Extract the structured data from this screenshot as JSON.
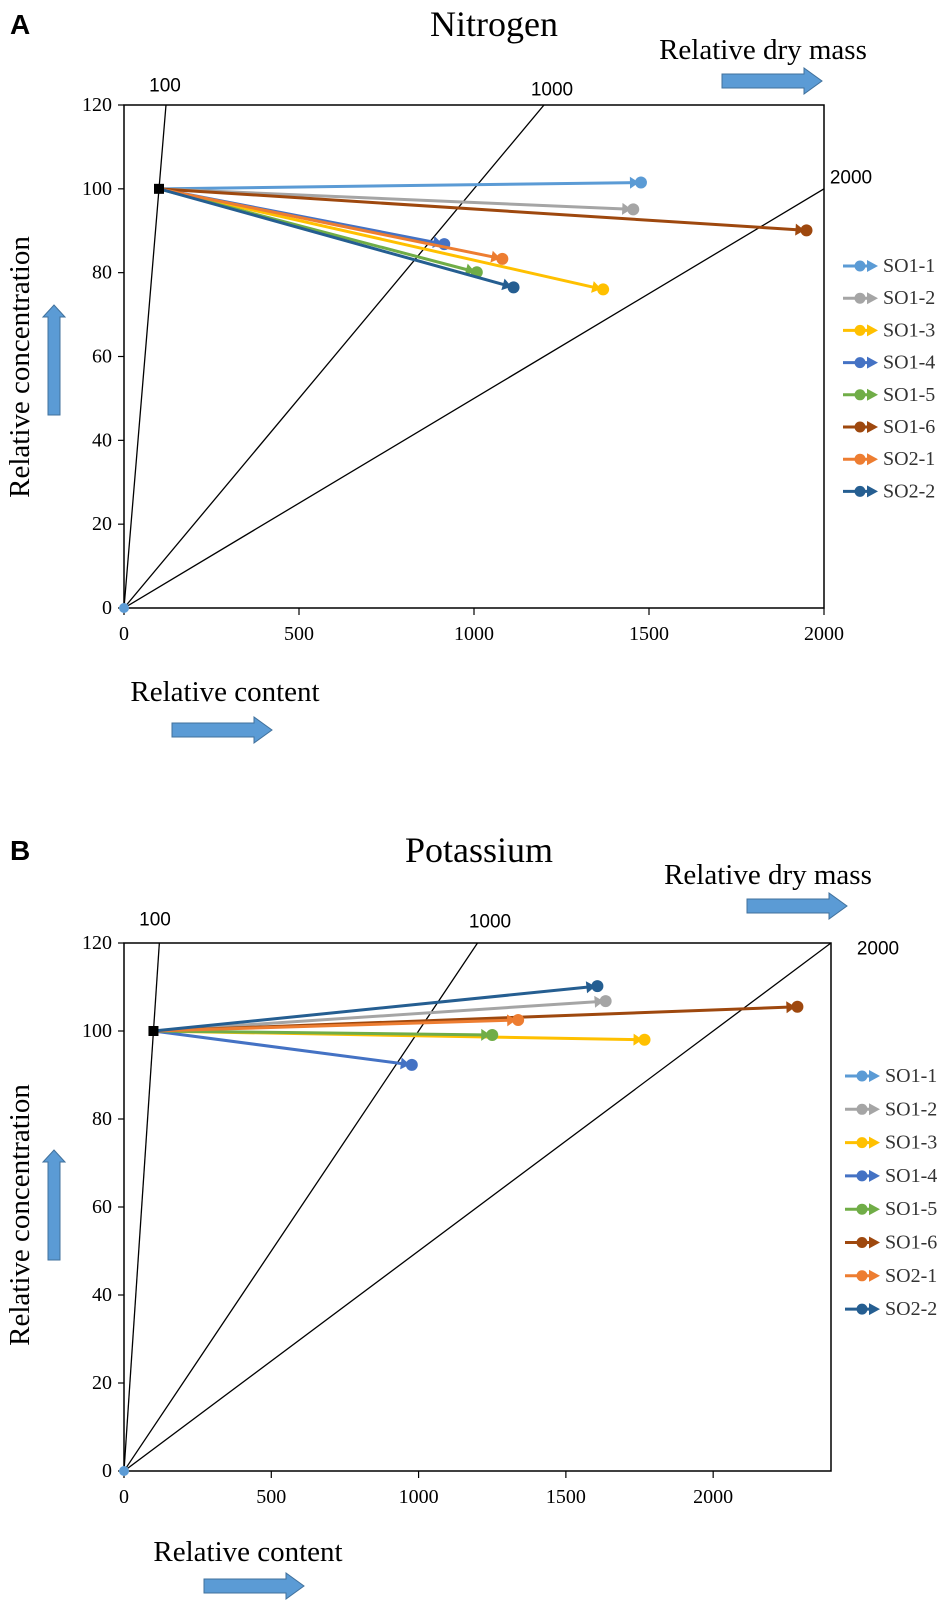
{
  "chart_data": [
    {
      "type": "line",
      "panel": "A",
      "title": "Nitrogen",
      "xlabel": "Relative content",
      "ylabel": "Relative concentration",
      "dry_mass_label": "Relative dry mass",
      "xlim": [
        0,
        2000
      ],
      "ylim": [
        0,
        120
      ],
      "x_ticks": [
        "0",
        "500",
        "1000",
        "1500",
        "2000"
      ],
      "y_ticks": [
        "0",
        "20",
        "40",
        "60",
        "80",
        "100",
        "120"
      ],
      "isolines": [
        {
          "label": "100",
          "dry_mass": 100
        },
        {
          "label": "1000",
          "dry_mass": 1000
        },
        {
          "label": "2000",
          "dry_mass": 2000
        }
      ],
      "start_point": [
        100,
        100
      ],
      "origin_point": [
        0,
        0
      ],
      "series": [
        {
          "name": "SO1-1",
          "color": "#5B9BD5",
          "end": [
            1477,
            101.5
          ]
        },
        {
          "name": "SO1-2",
          "color": "#A5A5A5",
          "end": [
            1455,
            95.1
          ]
        },
        {
          "name": "SO1-3",
          "color": "#FFC000",
          "end": [
            1369,
            76.0
          ]
        },
        {
          "name": "SO1-4",
          "color": "#4472C4",
          "end": [
            915,
            86.8
          ]
        },
        {
          "name": "SO1-5",
          "color": "#70AD47",
          "end": [
            1008,
            80.1
          ]
        },
        {
          "name": "SO1-6",
          "color": "#9E480E",
          "end": [
            1950,
            90.1
          ]
        },
        {
          "name": "SO2-1",
          "color": "#ED7D31",
          "end": [
            1081,
            83.3
          ]
        },
        {
          "name": "SO2-2",
          "color": "#255E91",
          "end": [
            1113,
            76.5
          ]
        }
      ],
      "legend_position": "right"
    },
    {
      "type": "line",
      "panel": "B",
      "title": "Potassium",
      "xlabel": "Relative content",
      "ylabel": "Relative concentration",
      "dry_mass_label": "Relative dry mass",
      "xlim": [
        0,
        2400
      ],
      "ylim": [
        0,
        120
      ],
      "x_ticks": [
        "0",
        "500",
        "1000",
        "1500",
        "2000"
      ],
      "y_ticks": [
        "0",
        "20",
        "40",
        "60",
        "80",
        "100",
        "120"
      ],
      "isolines": [
        {
          "label": "100",
          "dry_mass": 100
        },
        {
          "label": "1000",
          "dry_mass": 1000
        },
        {
          "label": "2000",
          "dry_mass": 2000
        }
      ],
      "start_point": [
        100,
        100
      ],
      "origin_point": [
        0,
        0
      ],
      "series": [
        {
          "name": "SO1-1",
          "color": "#5B9BD5",
          "end": null
        },
        {
          "name": "SO1-2",
          "color": "#A5A5A5",
          "end": [
            1635,
            106.8
          ]
        },
        {
          "name": "SO1-3",
          "color": "#FFC000",
          "end": [
            1767,
            98.0
          ]
        },
        {
          "name": "SO1-4",
          "color": "#4472C4",
          "end": [
            977,
            92.3
          ]
        },
        {
          "name": "SO1-5",
          "color": "#70AD47",
          "end": [
            1250,
            99.1
          ]
        },
        {
          "name": "SO1-6",
          "color": "#9E480E",
          "end": [
            2286,
            105.5
          ]
        },
        {
          "name": "SO2-1",
          "color": "#ED7D31",
          "end": [
            1338,
            102.5
          ]
        },
        {
          "name": "SO2-2",
          "color": "#255E91",
          "end": [
            1607,
            110.2
          ]
        }
      ],
      "legend_position": "right"
    }
  ],
  "colors": {
    "arrow_fill": "#5B9BD5",
    "arrow_stroke": "#41719C",
    "origin_marker": "#5B9BD5",
    "start_marker": "#000000"
  }
}
